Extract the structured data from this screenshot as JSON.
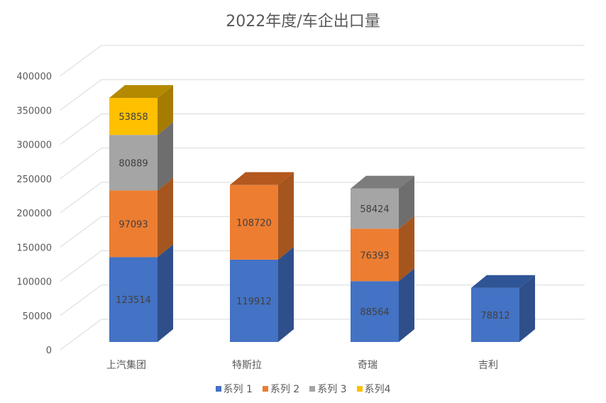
{
  "chart_data": {
    "type": "bar",
    "subtype": "stacked-3d-column",
    "title": "2022年度/车企出口量",
    "xlabel": "",
    "ylabel": "",
    "ylim": [
      0,
      400000
    ],
    "y_ticks": [
      "0",
      "50000",
      "100000",
      "150000",
      "200000",
      "250000",
      "300000",
      "350000",
      "400000"
    ],
    "categories": [
      "上汽集团",
      "特斯拉",
      "奇瑞",
      "吉利"
    ],
    "series": [
      {
        "name": "系列 1",
        "color": "#4472C4",
        "side": "#2F4F8A",
        "top": "#2F5597",
        "values": [
          123514,
          119912,
          88564,
          78812
        ]
      },
      {
        "name": "系列 2",
        "color": "#ED7D31",
        "side": "#A5561F",
        "top": "#B3581E",
        "values": [
          97093,
          108720,
          76393,
          null
        ]
      },
      {
        "name": "系列 3",
        "color": "#A5A5A5",
        "side": "#6E6E6E",
        "top": "#7C7C7C",
        "values": [
          80889,
          null,
          58424,
          null
        ]
      },
      {
        "name": "系列4",
        "color": "#FFC000",
        "side": "#A67C00",
        "top": "#B38A00",
        "values": [
          53858,
          null,
          null,
          null
        ]
      }
    ],
    "grid": true,
    "legend_position": "bottom"
  }
}
